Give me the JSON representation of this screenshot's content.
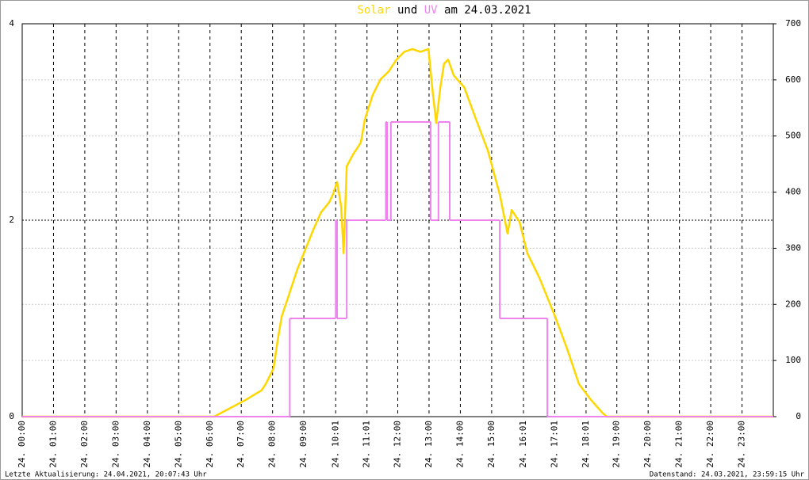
{
  "chart_data": {
    "type": "line",
    "title_date": "am 24.03.2021",
    "title_joiner": "und",
    "footer_left": "Letzte Aktualisierung: 24.04.2021, 20:07:43 Uhr",
    "footer_right": "Datenstand: 24.03.2021, 23:59:15 Uhr",
    "xlim": [
      0,
      24
    ],
    "xticks": [
      {
        "value": 0,
        "label": "24. 00:00"
      },
      {
        "value": 1,
        "label": "24. 01:00"
      },
      {
        "value": 2,
        "label": "24. 02:00"
      },
      {
        "value": 3,
        "label": "24. 03:00"
      },
      {
        "value": 4,
        "label": "24. 04:00"
      },
      {
        "value": 5,
        "label": "24. 05:00"
      },
      {
        "value": 6,
        "label": "24. 06:00"
      },
      {
        "value": 7,
        "label": "24. 07:00"
      },
      {
        "value": 8,
        "label": "24. 08:00"
      },
      {
        "value": 9,
        "label": "24. 09:00"
      },
      {
        "value": 10.017,
        "label": "24. 10:01"
      },
      {
        "value": 11.017,
        "label": "24. 11:01"
      },
      {
        "value": 12,
        "label": "24. 12:00"
      },
      {
        "value": 13,
        "label": "24. 13:00"
      },
      {
        "value": 14,
        "label": "24. 14:00"
      },
      {
        "value": 15,
        "label": "24. 15:00"
      },
      {
        "value": 16.017,
        "label": "24. 16:01"
      },
      {
        "value": 17.017,
        "label": "24. 17:01"
      },
      {
        "value": 18.017,
        "label": "24. 18:01"
      },
      {
        "value": 19,
        "label": "24. 19:00"
      },
      {
        "value": 20,
        "label": "24. 20:00"
      },
      {
        "value": 21,
        "label": "24. 21:00"
      },
      {
        "value": 22,
        "label": "24. 22:00"
      },
      {
        "value": 23,
        "label": "24. 23:00"
      }
    ],
    "ylim": [
      0,
      4
    ],
    "yticks": [
      0,
      2,
      4
    ],
    "y2lim": [
      0,
      700
    ],
    "y2ticks": [
      0,
      100,
      200,
      300,
      400,
      500,
      600,
      700
    ],
    "grid": true,
    "series": [
      {
        "name": "Solar",
        "color": "#ffd700",
        "axis": "y2",
        "x": [
          0,
          6.13,
          6.64,
          7.15,
          7.65,
          7.78,
          8.03,
          8.16,
          8.29,
          8.54,
          8.79,
          9.05,
          9.3,
          9.55,
          9.81,
          9.93,
          10.06,
          10.19,
          10.27,
          10.37,
          10.57,
          10.82,
          10.95,
          11.2,
          11.45,
          11.71,
          11.96,
          12.21,
          12.47,
          12.72,
          12.98,
          13.1,
          13.23,
          13.36,
          13.48,
          13.61,
          13.79,
          14.12,
          14.5,
          14.88,
          15.26,
          15.51,
          15.64,
          15.89,
          16.14,
          16.52,
          17.03,
          17.41,
          17.79,
          18.17,
          18.55,
          18.68,
          24
        ],
        "values": [
          0,
          0,
          15,
          30,
          47,
          58,
          86,
          135,
          178,
          220,
          262,
          298,
          333,
          364,
          382,
          396,
          418,
          375,
          291,
          446,
          467,
          488,
          530,
          573,
          601,
          615,
          636,
          650,
          655,
          650,
          655,
          587,
          523,
          587,
          629,
          636,
          608,
          587,
          530,
          474,
          396,
          326,
          368,
          347,
          291,
          248,
          178,
          121,
          58,
          30,
          6,
          0,
          0
        ]
      },
      {
        "name": "UV",
        "color": "#ee82ee",
        "axis": "y",
        "step": "post",
        "x": [
          0,
          8.55,
          10.02,
          10.06,
          10.37,
          11.62,
          11.66,
          11.78,
          13.05,
          13.3,
          13.66,
          15.26,
          16.78,
          24
        ],
        "values": [
          0,
          1,
          2,
          1,
          2,
          3,
          2,
          3,
          2,
          3,
          2,
          1,
          0,
          0
        ]
      }
    ]
  }
}
